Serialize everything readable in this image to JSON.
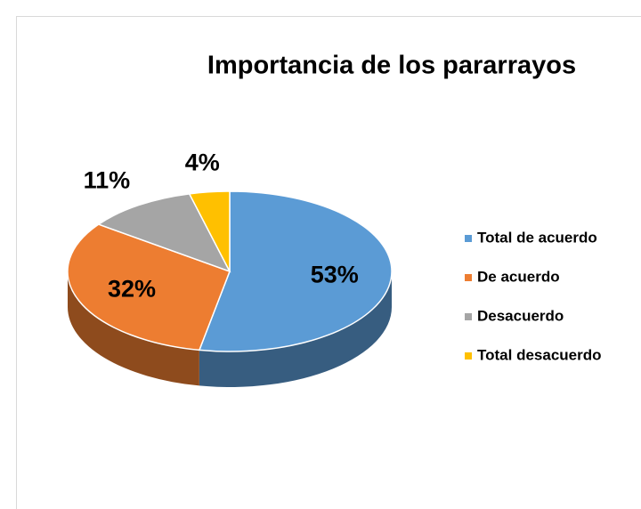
{
  "chart_data": {
    "type": "pie",
    "title": "Importancia de los pararrayos",
    "categories": [
      "Total de acuerdo",
      "De acuerdo",
      "Desacuerdo",
      "Total desacuerdo"
    ],
    "values": [
      53,
      32,
      11,
      4
    ],
    "value_labels": [
      "53%",
      "32%",
      "11%",
      "4%"
    ],
    "colors": [
      "#5b9bd5",
      "#ed7d31",
      "#a5a5a5",
      "#ffc000"
    ],
    "legend": "right"
  }
}
